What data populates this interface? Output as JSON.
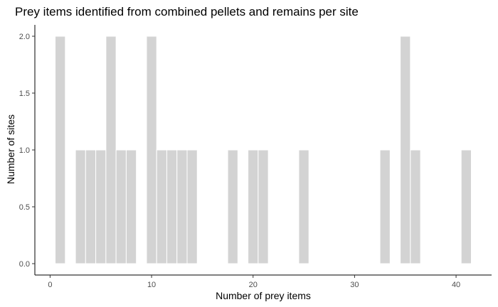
{
  "chart_data": {
    "type": "bar",
    "title": "Prey items identified from combined pellets and remains per site",
    "xlabel": "Number of prey items",
    "ylabel": "Number of sites",
    "xlim": [
      -1.5,
      43.5
    ],
    "ylim": [
      -0.1,
      2.1
    ],
    "x_ticks": [
      0,
      10,
      20,
      30,
      40
    ],
    "y_ticks": [
      0.0,
      0.5,
      1.0,
      1.5,
      2.0
    ],
    "x_tick_labels": [
      "0",
      "10",
      "20",
      "30",
      "40"
    ],
    "y_tick_labels": [
      "0.0",
      "0.5",
      "1.0",
      "1.5",
      "2.0"
    ],
    "bar_width": 1,
    "bar_color": "#d3d3d3",
    "grid": false,
    "legend": "none",
    "bars": [
      {
        "x": 1,
        "count": 2
      },
      {
        "x": 3,
        "count": 1
      },
      {
        "x": 4,
        "count": 1
      },
      {
        "x": 5,
        "count": 1
      },
      {
        "x": 6,
        "count": 2
      },
      {
        "x": 7,
        "count": 1
      },
      {
        "x": 8,
        "count": 1
      },
      {
        "x": 10,
        "count": 2
      },
      {
        "x": 11,
        "count": 1
      },
      {
        "x": 12,
        "count": 1
      },
      {
        "x": 13,
        "count": 1
      },
      {
        "x": 14,
        "count": 1
      },
      {
        "x": 18,
        "count": 1
      },
      {
        "x": 20,
        "count": 1
      },
      {
        "x": 21,
        "count": 1
      },
      {
        "x": 25,
        "count": 1
      },
      {
        "x": 33,
        "count": 1
      },
      {
        "x": 35,
        "count": 2
      },
      {
        "x": 36,
        "count": 1
      },
      {
        "x": 41,
        "count": 1
      }
    ]
  }
}
